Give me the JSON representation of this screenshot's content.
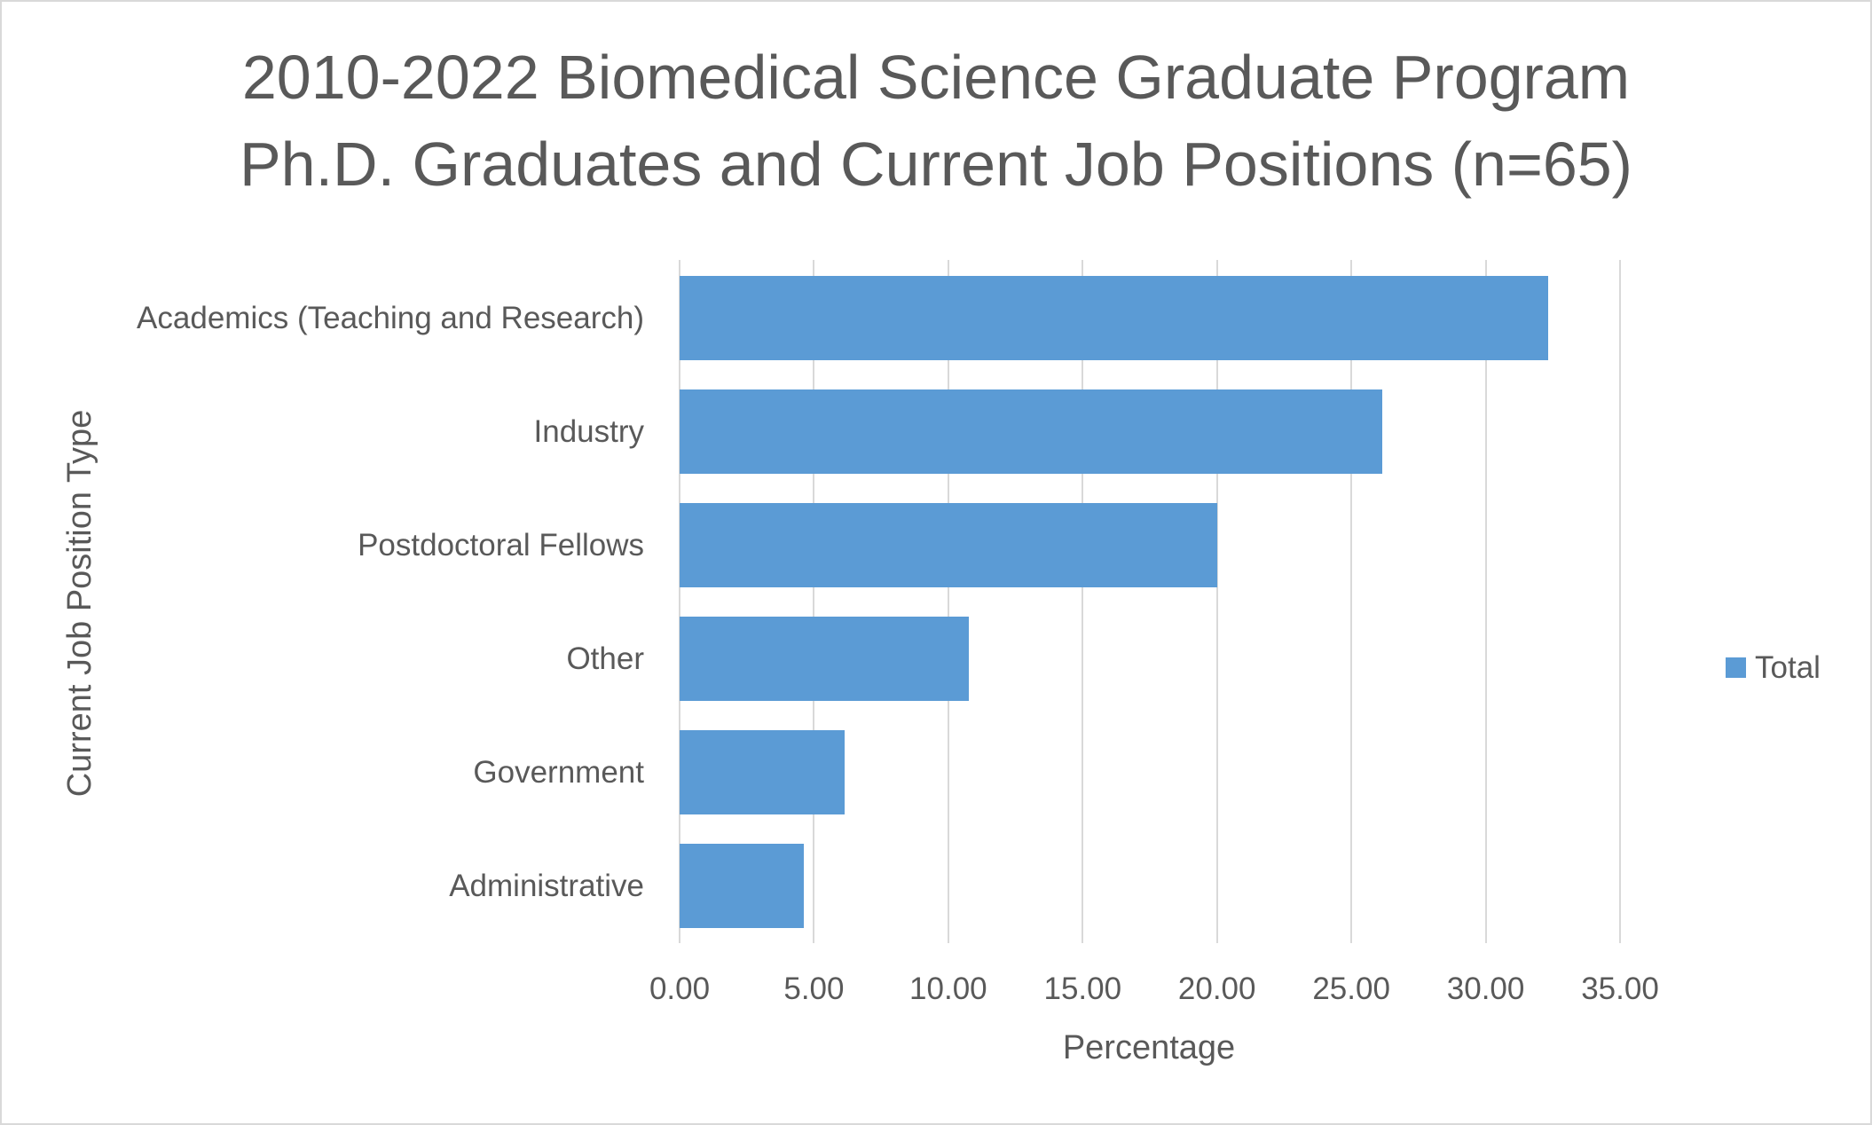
{
  "title": {
    "line1": "2010-2022 Biomedical Science Graduate Program",
    "line2": "Ph.D. Graduates and Current Job Positions (n=65)"
  },
  "axes": {
    "xlabel": "Percentage",
    "ylabel": "Current Job Position Type",
    "xticks": [
      "0.00",
      "5.00",
      "10.00",
      "15.00",
      "20.00",
      "25.00",
      "30.00",
      "35.00"
    ]
  },
  "legend": {
    "label": "Total",
    "color": "#5b9bd5"
  },
  "colors": {
    "bar": "#5b9bd5",
    "grid": "#d9d9d9",
    "text": "#595959"
  },
  "chart_data": {
    "type": "bar",
    "orientation": "horizontal",
    "title": "2010-2022 Biomedical Science Graduate Program Ph.D. Graduates and Current Job Positions (n=65)",
    "xlabel": "Percentage",
    "ylabel": "Current Job Position Type",
    "categories": [
      "Academics (Teaching and Research)",
      "Industry",
      "Postdoctoral Fellows",
      "Other",
      "Government",
      "Administrative"
    ],
    "series": [
      {
        "name": "Total",
        "values": [
          32.31,
          26.15,
          20.0,
          10.77,
          6.15,
          4.62
        ]
      }
    ],
    "xlim": [
      0,
      35
    ],
    "xticks": [
      0,
      5,
      10,
      15,
      20,
      25,
      30,
      35
    ],
    "grid": "vertical",
    "legend_position": "right"
  }
}
